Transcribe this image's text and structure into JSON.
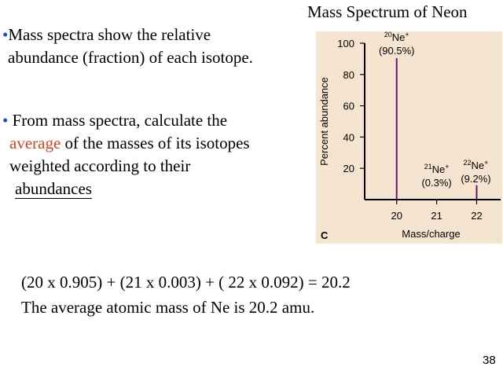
{
  "slide": {
    "title": "Mass Spectrum of Neon",
    "bullet1": {
      "marker": "•",
      "line1": "Mass spectra show the relative",
      "line2": "abundance (fraction) of each isotope."
    },
    "bullet2": {
      "marker": "•",
      "line1": "From mass spectra, calculate the",
      "highlight": "average",
      "line2_rest": "of the masses of its isotopes",
      "line3": "weighted according to their",
      "line4": "abundances"
    },
    "equation": "(20 x 0.905) + (21 x 0.003) + ( 22 x 0.092) = 20.2",
    "conclusion": "The average atomic mass of Ne is 20.2 amu.",
    "page_number": "38"
  },
  "colors": {
    "bullet": "#1a4fd6",
    "highlight": "#e2401b",
    "chart_background": "#f5e4cf",
    "bar": "#5b1d6e"
  },
  "chart_data": {
    "type": "bar",
    "panel_label": "C",
    "xlabel": "Mass/charge",
    "ylabel": "Percent abundance",
    "x_ticks": [
      "20",
      "21",
      "22"
    ],
    "y_ticks": [
      "20",
      "40",
      "60",
      "80",
      "100"
    ],
    "ylim": [
      0,
      100
    ],
    "xlim": [
      19.2,
      22.6
    ],
    "series": [
      {
        "x": 20,
        "value": 90.5,
        "label_mass": "20",
        "label_element": "Ne",
        "label_charge": "+",
        "label_percent": "(90.5%)"
      },
      {
        "x": 21,
        "value": 0.3,
        "label_mass": "21",
        "label_element": "Ne",
        "label_charge": "+",
        "label_percent": "(0.3%)"
      },
      {
        "x": 22,
        "value": 9.2,
        "label_mass": "22",
        "label_element": "Ne",
        "label_charge": "+",
        "label_percent": "(9.2%)"
      }
    ]
  }
}
